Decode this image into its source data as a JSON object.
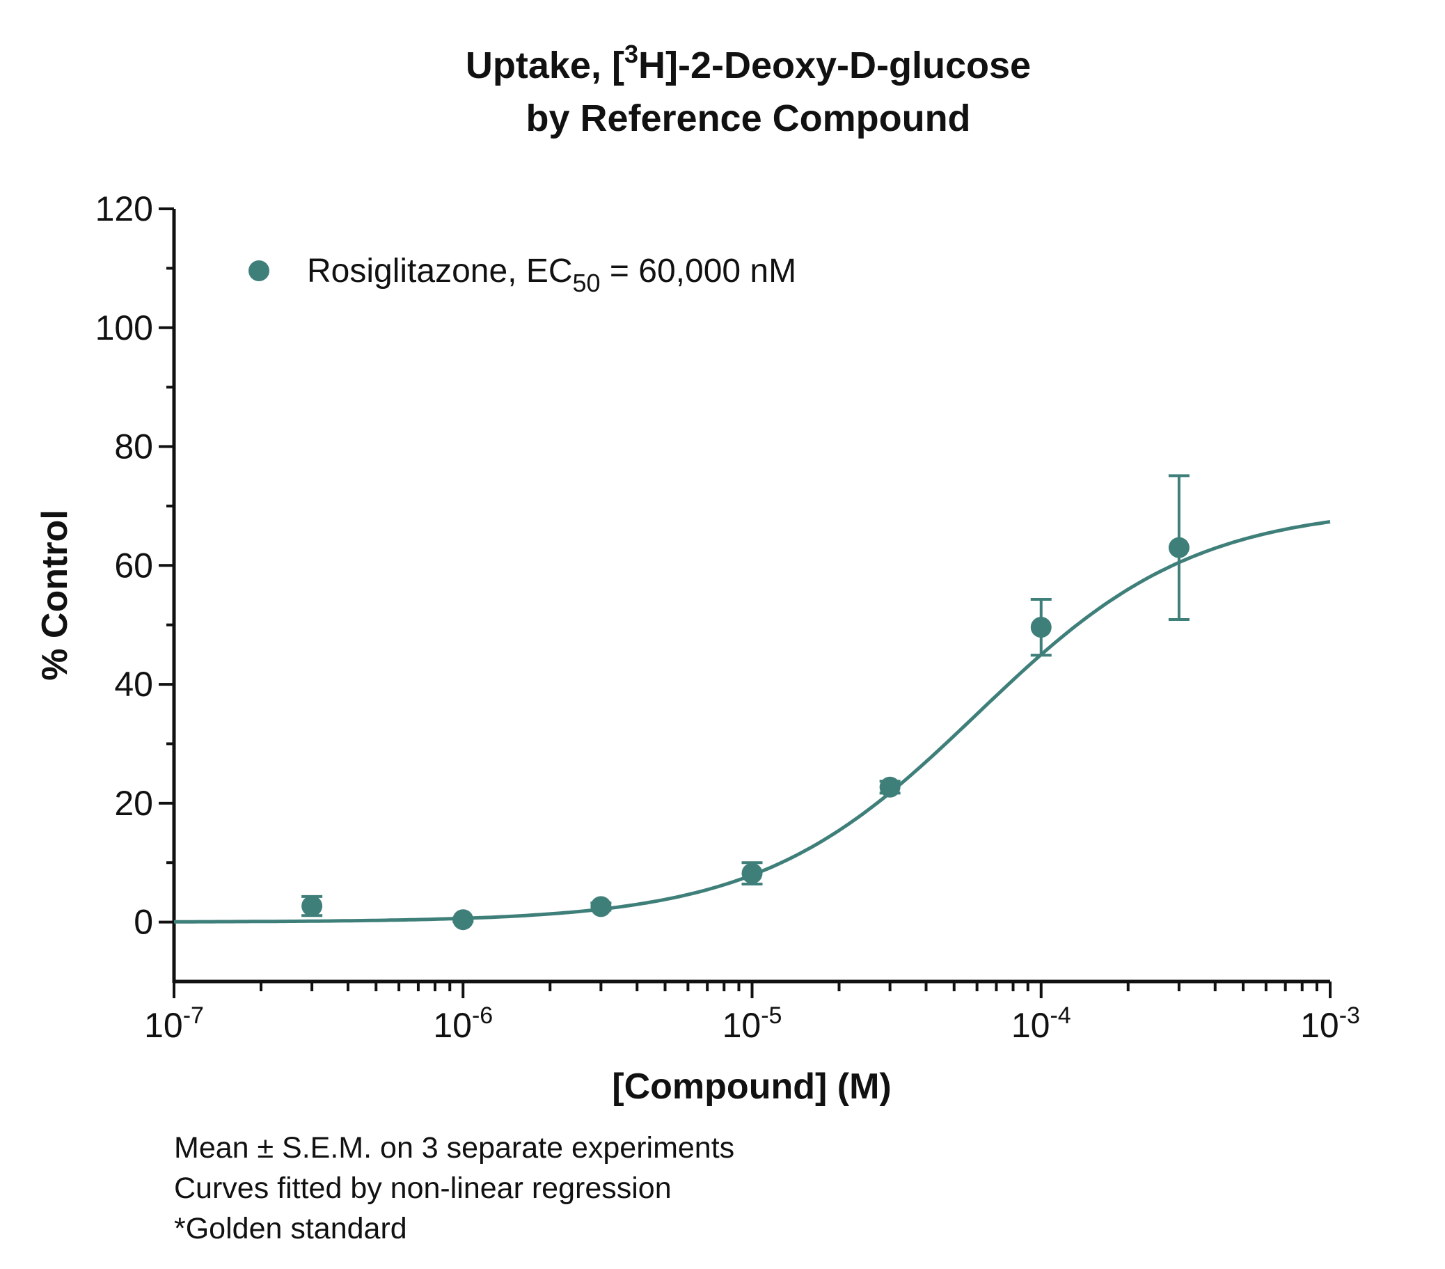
{
  "chart_data": {
    "type": "scatter",
    "title": {
      "line1_before": "Uptake, [",
      "line1_sup": "3",
      "line1_after": "H]-2-Deoxy-D-glucose",
      "line2": "by Reference Compound"
    },
    "xlabel": "[Compound] (M)",
    "ylabel": "% Control",
    "x_scale": "log",
    "xlim": [
      1e-07,
      0.001
    ],
    "ylim": [
      -10,
      120
    ],
    "x_ticks": [
      {
        "base": "10",
        "exp": "-7",
        "value": 1e-07
      },
      {
        "base": "10",
        "exp": "-6",
        "value": 1e-06
      },
      {
        "base": "10",
        "exp": "-5",
        "value": 1e-05
      },
      {
        "base": "10",
        "exp": "-4",
        "value": 0.0001
      },
      {
        "base": "10",
        "exp": "-3",
        "value": 0.001
      }
    ],
    "y_ticks": [
      {
        "label": "0",
        "value": 0
      },
      {
        "label": "20",
        "value": 20
      },
      {
        "label": "40",
        "value": 40
      },
      {
        "label": "60",
        "value": 60
      },
      {
        "label": "80",
        "value": 80
      },
      {
        "label": "100",
        "value": 100
      },
      {
        "label": "120",
        "value": 120
      }
    ],
    "grid": false,
    "legend_position": "top-left",
    "series": [
      {
        "name": "Rosiglitazone",
        "legend_label": {
          "before": "Rosiglitazone, EC",
          "sub": "50",
          "after": " = 60,000 nM"
        },
        "color": "#3F7F7A",
        "marker": "circle",
        "points": [
          {
            "x": 3e-07,
            "y": 2.7,
            "err": 1.6
          },
          {
            "x": 1e-06,
            "y": 0.4,
            "err": 0.3
          },
          {
            "x": 3e-06,
            "y": 2.6,
            "err": 0.6
          },
          {
            "x": 1e-05,
            "y": 8.2,
            "err": 1.8
          },
          {
            "x": 3e-05,
            "y": 22.7,
            "err": 1.0
          },
          {
            "x": 0.0001,
            "y": 49.6,
            "err": 4.7
          },
          {
            "x": 0.0003,
            "y": 63.0,
            "err": 12.1
          }
        ],
        "fit": {
          "model": "sigmoidal dose-response",
          "bottom": 0,
          "top": 70,
          "ec50": 6e-05,
          "hill": 1.15
        }
      }
    ],
    "footnotes": [
      "Mean ± S.E.M. on 3 separate experiments",
      "Curves fitted by non-linear regression",
      "*Golden standard"
    ]
  }
}
